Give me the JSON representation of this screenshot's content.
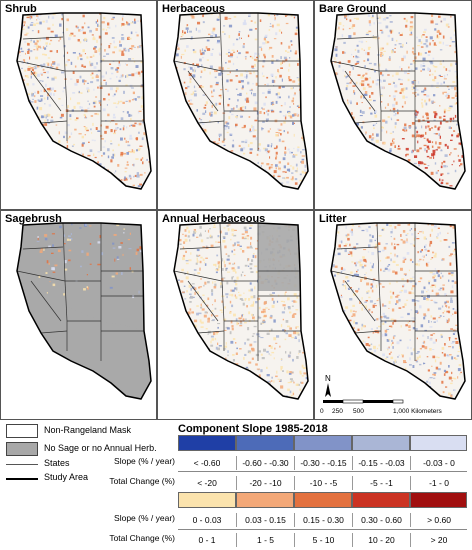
{
  "panels": [
    {
      "title": "Shrub",
      "variant": "mixed"
    },
    {
      "title": "Herbaceous",
      "variant": "mixed"
    },
    {
      "title": "Bare Ground",
      "variant": "red"
    },
    {
      "title": "Sagebrush",
      "variant": "sage"
    },
    {
      "title": "Annual Herbaceous",
      "variant": "annual"
    },
    {
      "title": "Litter",
      "variant": "mixed"
    }
  ],
  "north_label": "N",
  "scalebar": {
    "ticks": [
      "0",
      "250",
      "500",
      "1,000 Kilometers"
    ]
  },
  "legend": {
    "non_rangeland": "Non-Rangeland Mask",
    "no_sage": "No Sage or no Annual Herb.",
    "states": "States",
    "study_area": "Study Area"
  },
  "component_title": "Component Slope 1985-2018",
  "row_labels": {
    "slope": "Slope (% / year)",
    "total": "Total Change (%)"
  },
  "negative": {
    "colors": [
      "#1f3fa6",
      "#4d6bb8",
      "#8193c8",
      "#aab6d6",
      "#d9def2"
    ],
    "slope": [
      "< -0.60",
      "-0.60 - -0.30",
      "-0.30 - -0.15",
      "-0.15 - -0.03",
      "-0.03 - 0"
    ],
    "total": [
      "< -20",
      "-20 - -10",
      "-10 - -5",
      "-5 - -1",
      "-1 - 0"
    ]
  },
  "positive": {
    "colors": [
      "#fbe3ad",
      "#f3a878",
      "#e3713f",
      "#cb3323",
      "#a10f0f"
    ],
    "slope": [
      "0 - 0.03",
      "0.03 - 0.15",
      "0.15 - 0.30",
      "0.30 - 0.60",
      "> 0.60"
    ],
    "total": [
      "0 - 1",
      "1 - 5",
      "5 - 10",
      "10 - 20",
      "> 20"
    ]
  }
}
